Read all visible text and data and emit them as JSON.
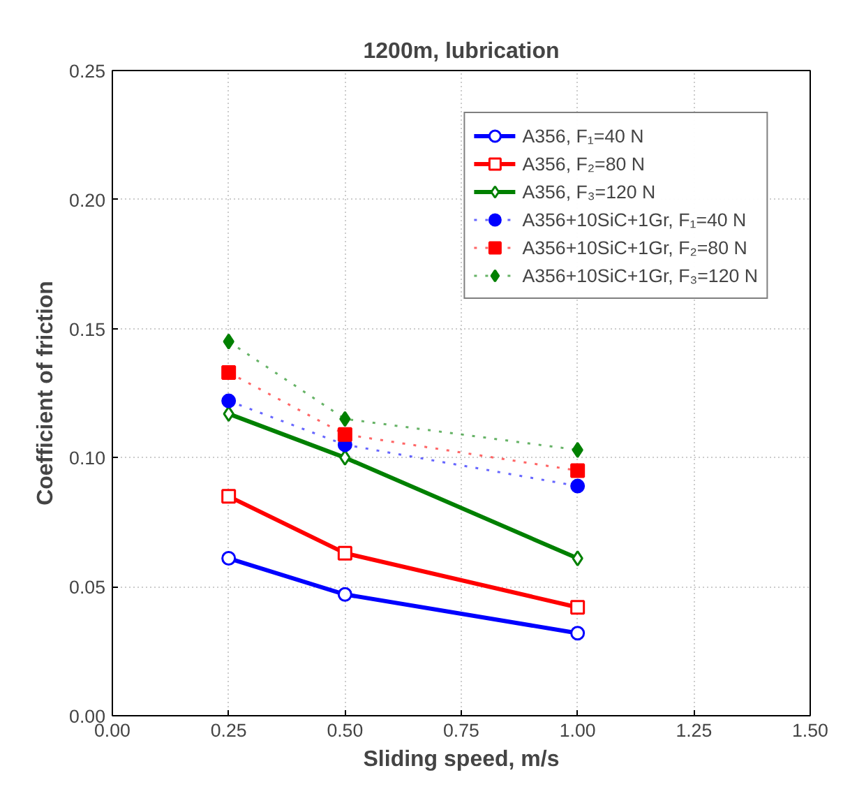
{
  "chart_data": {
    "type": "line",
    "title": "1200m, lubrication",
    "xlabel": "Sliding speed, m/s",
    "ylabel": "Coefficient of friction",
    "x": [
      0.25,
      0.5,
      1.0
    ],
    "series": [
      {
        "name": "A356, F₁=40 N",
        "color": "#0000ff",
        "marker": "circle",
        "line_style": "solid",
        "values": [
          0.061,
          0.047,
          0.032
        ]
      },
      {
        "name": "A356, F₂=80 N",
        "color": "#ff0000",
        "marker": "square",
        "line_style": "solid",
        "values": [
          0.085,
          0.063,
          0.042
        ]
      },
      {
        "name": "A356, F₃=120 N",
        "color": "#008000",
        "marker": "diamond",
        "line_style": "solid",
        "values": [
          0.117,
          0.1,
          0.061
        ]
      },
      {
        "name": "A356+10SiC+1Gr, F₁=40 N",
        "color": "#0000ff",
        "marker": "circle",
        "line_style": "dotted",
        "values": [
          0.122,
          0.105,
          0.089
        ]
      },
      {
        "name": "A356+10SiC+1Gr, F₂=80 N",
        "color": "#ff0000",
        "marker": "square",
        "line_style": "dotted",
        "values": [
          0.133,
          0.109,
          0.095
        ]
      },
      {
        "name": "A356+10SiC+1Gr, F₃=120 N",
        "color": "#008000",
        "marker": "diamond",
        "line_style": "dotted",
        "values": [
          0.145,
          0.115,
          0.103
        ]
      }
    ],
    "xlim": [
      0.0,
      1.5
    ],
    "xticks": [
      {
        "value": 0,
        "label": "0.00"
      },
      {
        "value": 0.25,
        "label": "0.25"
      },
      {
        "value": 0.5,
        "label": "0.50"
      },
      {
        "value": 0.75,
        "label": "0.75"
      },
      {
        "value": 1.0,
        "label": "1.00"
      },
      {
        "value": 1.25,
        "label": "1.25"
      },
      {
        "value": 1.5,
        "label": "1.50"
      }
    ],
    "ylim": [
      0.0,
      0.25
    ],
    "yticks": [
      {
        "value": 0,
        "label": "0.00"
      },
      {
        "value": 0.05,
        "label": "0.05"
      },
      {
        "value": 0.1,
        "label": "0.10"
      },
      {
        "value": 0.15,
        "label": "0.15"
      },
      {
        "value": 0.2,
        "label": "0.20"
      },
      {
        "value": 0.25,
        "label": "0.25"
      }
    ],
    "grid": true,
    "legend": "top right"
  }
}
